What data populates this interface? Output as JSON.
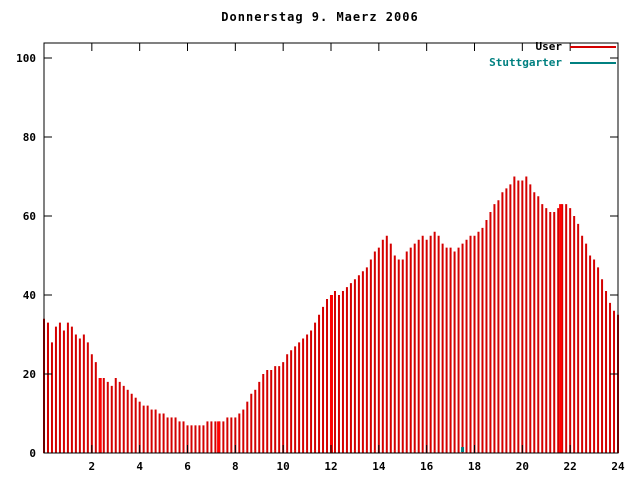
{
  "title": "Donnerstag 9. Maerz 2006",
  "legend": [
    {
      "label": "User",
      "color": "#d40000",
      "label_color": "#000000"
    },
    {
      "label": "Stuttgarter",
      "color": "#008080",
      "label_color": "#008080"
    }
  ],
  "chart_data": {
    "type": "bar",
    "title": "Donnerstag 9. Maerz 2006",
    "xlabel": "",
    "ylabel": "",
    "xlim": [
      0,
      24
    ],
    "ylim": [
      0,
      104
    ],
    "xticks": [
      2,
      4,
      6,
      8,
      10,
      12,
      14,
      16,
      18,
      20,
      22,
      24
    ],
    "yticks": [
      0,
      20,
      40,
      60,
      80,
      100
    ],
    "x_step_hours": 0.166667,
    "grid": false,
    "legend_position": "top-right",
    "series": [
      {
        "name": "User",
        "color": "#d40000",
        "values": [
          34,
          33,
          28,
          32,
          33,
          31,
          33,
          32,
          30,
          29,
          30,
          28,
          25,
          23,
          19,
          19,
          18,
          17,
          19,
          18,
          17,
          16,
          15,
          14,
          13,
          12,
          12,
          11,
          11,
          10,
          10,
          9,
          9,
          9,
          8,
          8,
          7,
          7,
          7,
          7,
          7,
          8,
          8,
          8,
          8,
          8,
          9,
          9,
          9,
          10,
          11,
          13,
          15,
          16,
          18,
          20,
          21,
          21,
          22,
          22,
          23,
          25,
          26,
          27,
          28,
          29,
          30,
          31,
          33,
          35,
          37,
          39,
          40,
          41,
          40,
          41,
          42,
          43,
          44,
          45,
          46,
          47,
          49,
          51,
          52,
          54,
          55,
          53,
          50,
          49,
          49,
          51,
          52,
          53,
          54,
          55,
          54,
          55,
          56,
          55,
          53,
          52,
          52,
          51,
          52,
          53,
          54,
          55,
          55,
          56,
          57,
          59,
          61,
          63,
          64,
          66,
          67,
          68,
          70,
          69,
          69,
          70,
          68,
          66,
          65,
          63,
          62,
          61,
          61,
          62,
          63,
          63,
          62,
          60,
          58,
          55,
          53,
          50,
          49,
          47,
          44,
          41,
          38,
          36,
          35
        ]
      },
      {
        "name": "Stuttgarter",
        "color": "#008080",
        "points": [
          {
            "x": 17.5,
            "y": 1
          }
        ]
      }
    ],
    "highlight_bars": [
      {
        "x": 2.35,
        "y": 19
      },
      {
        "x": 7.3,
        "y": 8
      },
      {
        "x": 12.02,
        "y": 40
      },
      {
        "x": 21.6,
        "y": 63
      }
    ]
  }
}
